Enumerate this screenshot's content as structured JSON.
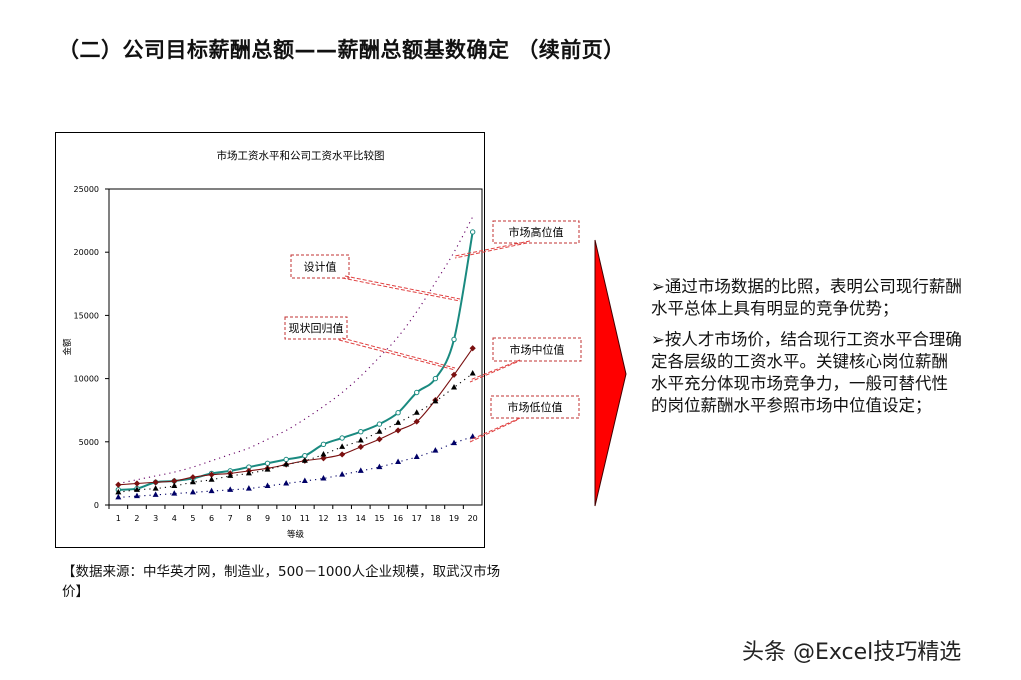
{
  "slide": {
    "title": "（二）公司目标薪酬总额——薪酬总额基数确定 （续前页）",
    "source_note": "【数据来源：中华英才网，制造业，500－1000人企业规模，取武汉市场价】",
    "bullets": [
      "➢通过市场数据的比照，表明公司现行薪酬水平总体上具有明显的竞争优势；",
      "➢按人才市场价，结合现行工资水平合理确定各层级的工资水平。关键核心岗位薪酬水平充分体现市场竞争力，一般可替代性的岗位薪酬水平参照市场中位值设定；"
    ],
    "watermark": "头条 @Excel技巧精选",
    "arrow_color": "#ff0000"
  },
  "chart_data": {
    "type": "line",
    "title": "市场工资水平和公司工资水平比较图",
    "xlabel": "等级",
    "ylabel": "金额",
    "categories": [
      "1",
      "2",
      "3",
      "4",
      "5",
      "6",
      "7",
      "8",
      "9",
      "10",
      "11",
      "12",
      "13",
      "14",
      "15",
      "16",
      "17",
      "18",
      "19",
      "20"
    ],
    "ylim": [
      0,
      25000
    ],
    "yticks": [
      "0",
      "5000",
      "10000",
      "15000",
      "20000",
      "25000"
    ],
    "grid": false,
    "legend": "callouts",
    "series": [
      {
        "name": "市场高位值",
        "color": "#660066",
        "style": "dotted",
        "values": [
          1700,
          2000,
          2300,
          2600,
          3000,
          3500,
          4000,
          4500,
          5200,
          5900,
          6800,
          7800,
          8900,
          10200,
          11700,
          13300,
          15300,
          17600,
          20000,
          22800
        ]
      },
      {
        "name": "设计值",
        "color": "#1a8a80",
        "style": "solid-circle",
        "values": [
          1200,
          1300,
          1800,
          1900,
          2100,
          2500,
          2700,
          3000,
          3300,
          3600,
          3900,
          4800,
          5300,
          5800,
          6400,
          7300,
          8900,
          10000,
          13100,
          21600
        ]
      },
      {
        "name": "现状回归值",
        "color": "#7a1010",
        "style": "solid-diamond",
        "values": [
          1600,
          1700,
          1800,
          1900,
          2200,
          2400,
          2500,
          2700,
          2900,
          3200,
          3500,
          3700,
          4000,
          4600,
          5200,
          5900,
          6600,
          8300,
          10300,
          12400
        ]
      },
      {
        "name": "市场中位值",
        "color": "#000000",
        "style": "dotted-triangle",
        "values": [
          1000,
          1200,
          1300,
          1500,
          1800,
          2000,
          2300,
          2500,
          2800,
          3200,
          3500,
          4000,
          4600,
          5100,
          5800,
          6500,
          7300,
          8200,
          9300,
          10400
        ]
      },
      {
        "name": "市场低位值",
        "color": "#000066",
        "style": "dotted-triangle",
        "values": [
          600,
          700,
          800,
          900,
          1000,
          1100,
          1200,
          1300,
          1500,
          1700,
          1900,
          2100,
          2400,
          2700,
          3000,
          3400,
          3800,
          4300,
          4900,
          5400
        ]
      }
    ]
  }
}
